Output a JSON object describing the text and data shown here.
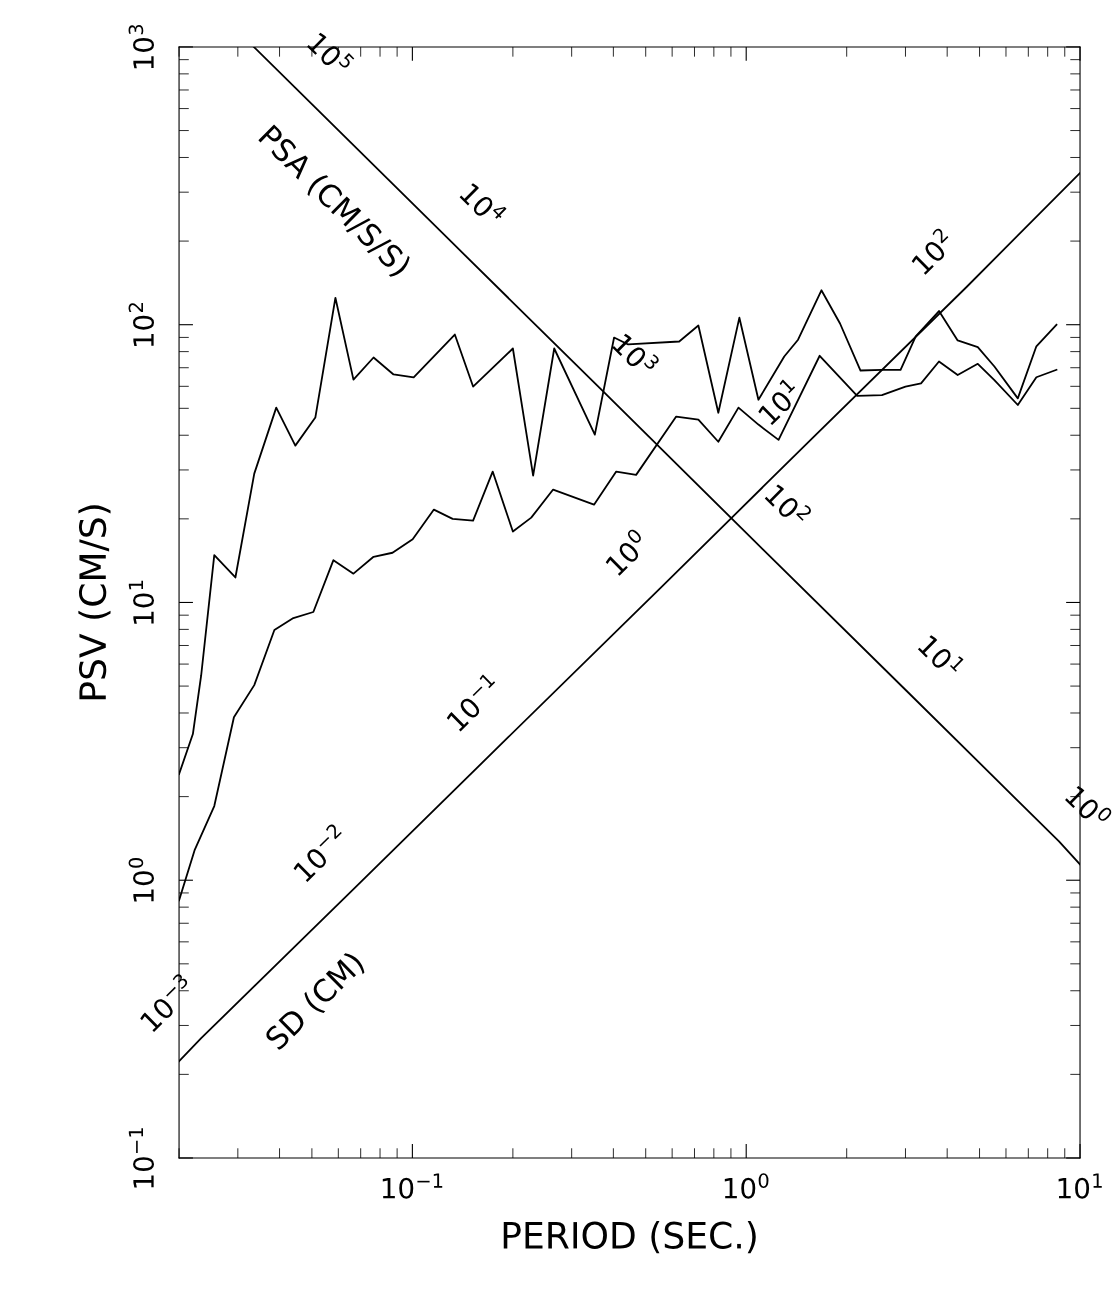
{
  "chart_data": {
    "type": "line",
    "xlabel": "PERIOD (SEC.)",
    "ylabel": "PSV (CM/S)",
    "log": "xy",
    "grid": false,
    "legend": false,
    "xlim": [
      0.02,
      10
    ],
    "ylim": [
      0.1,
      1000
    ],
    "xticks": [
      {
        "value": 0.1,
        "label": "10$^{−1}$"
      },
      {
        "value": 1,
        "label": "10$^{0}$"
      },
      {
        "value": 10,
        "label": "10$^{1}$"
      }
    ],
    "yticks": [
      {
        "value": 0.1,
        "label": "10$^{−1}$"
      },
      {
        "value": 1,
        "label": "10$^{0}$"
      },
      {
        "value": 10,
        "label": "10$^{1}$"
      },
      {
        "value": 100,
        "label": "10$^{2}$"
      },
      {
        "value": 1000,
        "label": "10$^{3}$"
      }
    ],
    "series": [
      {
        "color": "#000000",
        "x": [
          0.02,
          0.022,
          0.0233,
          0.0255,
          0.0295,
          0.0336,
          0.0391,
          0.0446,
          0.0512,
          0.0588,
          0.0666,
          0.0765,
          0.0878,
          0.1009,
          0.134,
          0.152,
          0.2,
          0.23,
          0.266,
          0.352,
          0.402,
          0.443,
          0.63,
          0.719,
          0.825,
          0.954,
          1.088,
          1.3,
          1.43,
          1.68,
          1.91,
          2.2,
          2.55,
          2.9,
          3.22,
          3.78,
          4.3,
          4.94,
          5.54,
          6.51,
          7.4,
          8.5
        ],
        "values": [
          2.41,
          3.36,
          5.47,
          14.8,
          12.3,
          29.1,
          50.3,
          36.7,
          46.3,
          125,
          63.4,
          76.2,
          66.2,
          64.6,
          92.2,
          59.9,
          82.1,
          28.6,
          82.1,
          40.2,
          89.9,
          84.9,
          87.0,
          99.3,
          48.2,
          106,
          53.7,
          76.8,
          88.3,
          133,
          101,
          68.4,
          68.8,
          68.8,
          90.8,
          112,
          87.8,
          83.0,
          70.7,
          54.3,
          83.6,
          100
        ]
      },
      {
        "color": "#000000",
        "x": [
          0.02,
          0.0223,
          0.0255,
          0.0292,
          0.0336,
          0.0386,
          0.044,
          0.0505,
          0.058,
          0.0666,
          0.0765,
          0.0872,
          0.1002,
          0.116,
          0.132,
          0.152,
          0.174,
          0.2,
          0.227,
          0.264,
          0.35,
          0.408,
          0.468,
          0.617,
          0.719,
          0.825,
          0.948,
          1.088,
          1.25,
          1.66,
          2.15,
          2.55,
          3.0,
          3.34,
          3.78,
          4.3,
          4.94,
          5.54,
          6.51,
          7.4,
          8.5
        ],
        "values": [
          0.846,
          1.29,
          1.85,
          3.86,
          5.04,
          7.96,
          8.79,
          9.24,
          14.2,
          12.7,
          14.6,
          15.1,
          16.9,
          21.6,
          20.0,
          19.7,
          29.6,
          18.0,
          20.2,
          25.5,
          22.5,
          29.6,
          28.8,
          46.7,
          45.5,
          37.9,
          50.3,
          43.7,
          38.5,
          77.3,
          55.4,
          55.8,
          59.9,
          61.5,
          73.7,
          65.9,
          72.3,
          63.2,
          51.4,
          64.7,
          68.8
        ]
      },
      {
        "name": "SD (CM)",
        "color": "#000000",
        "x": [
          0.02,
          0.0233,
          0.0671,
          0.193,
          0.555,
          1.59,
          4.58,
          10
        ],
        "values": [
          0.223,
          0.27,
          0.936,
          3.26,
          11.3,
          39.4,
          137,
          352
        ]
      },
      {
        "name": "PSA (CM/S/S)",
        "color": "#000000",
        "x": [
          0.0335,
          0.0447,
          0.128,
          0.367,
          1.05,
          3.02,
          8.65,
          10
        ],
        "values": [
          1000,
          711,
          204,
          58.6,
          16.8,
          4.81,
          1.38,
          1.14
        ]
      }
    ],
    "annotations": [
      "10$^{−3}$",
      "10$^{−2}$",
      "10$^{−1}$",
      "10$^{0}$",
      "10$^{1}$",
      "10$^{2}$",
      "10$^{5}$",
      "10$^{4}$",
      "10$^{3}$",
      "10$^{2}$",
      "10$^{1}$",
      "10$^{0}$"
    ]
  }
}
